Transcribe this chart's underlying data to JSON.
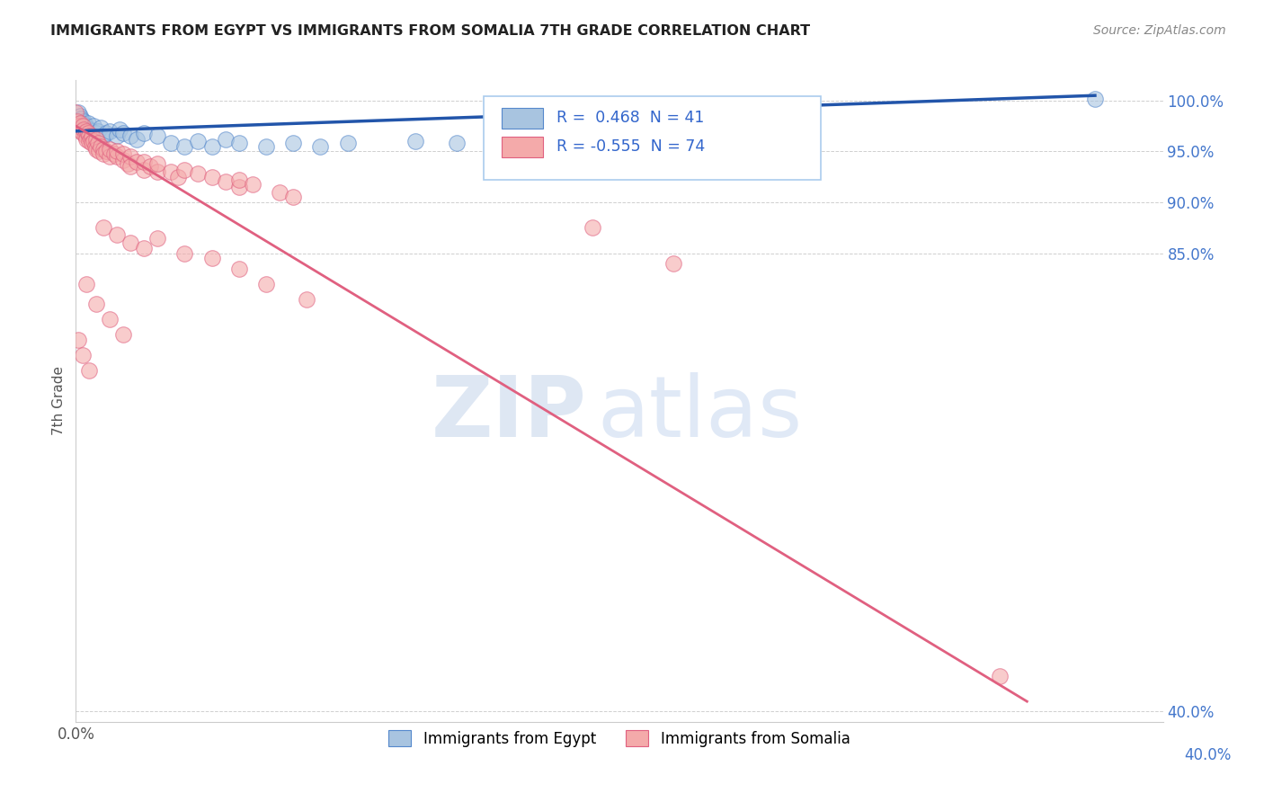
{
  "title": "IMMIGRANTS FROM EGYPT VS IMMIGRANTS FROM SOMALIA 7TH GRADE CORRELATION CHART",
  "source": "Source: ZipAtlas.com",
  "ylabel": "7th Grade",
  "r_egypt": 0.468,
  "n_egypt": 41,
  "r_somalia": -0.555,
  "n_somalia": 74,
  "egypt_color": "#A8C4E0",
  "somalia_color": "#F4AAAA",
  "egypt_edge_color": "#5588CC",
  "somalia_edge_color": "#E06080",
  "egypt_line_color": "#2255AA",
  "somalia_line_color": "#E06080",
  "watermark_zip": "ZIP",
  "watermark_atlas": "atlas",
  "background_color": "#FFFFFF",
  "grid_color": "#BBBBBB",
  "xlim": [
    0.0,
    0.8
  ],
  "ylim": [
    39.0,
    102.0
  ],
  "yticks": [
    40.0,
    85.0,
    90.0,
    95.0,
    100.0
  ],
  "egypt_scatter": [
    [
      0.0,
      97.5
    ],
    [
      0.002,
      98.8
    ],
    [
      0.003,
      98.5
    ],
    [
      0.004,
      98.2
    ],
    [
      0.005,
      97.8
    ],
    [
      0.006,
      98.0
    ],
    [
      0.007,
      97.6
    ],
    [
      0.008,
      97.4
    ],
    [
      0.009,
      97.8
    ],
    [
      0.01,
      97.2
    ],
    [
      0.012,
      97.0
    ],
    [
      0.013,
      97.5
    ],
    [
      0.015,
      96.8
    ],
    [
      0.016,
      97.0
    ],
    [
      0.018,
      97.3
    ],
    [
      0.02,
      96.5
    ],
    [
      0.022,
      96.8
    ],
    [
      0.025,
      97.0
    ],
    [
      0.03,
      96.5
    ],
    [
      0.032,
      97.2
    ],
    [
      0.035,
      96.8
    ],
    [
      0.04,
      96.5
    ],
    [
      0.045,
      96.2
    ],
    [
      0.05,
      96.8
    ],
    [
      0.06,
      96.5
    ],
    [
      0.07,
      95.8
    ],
    [
      0.08,
      95.5
    ],
    [
      0.09,
      96.0
    ],
    [
      0.1,
      95.5
    ],
    [
      0.11,
      96.2
    ],
    [
      0.12,
      95.8
    ],
    [
      0.14,
      95.5
    ],
    [
      0.16,
      95.8
    ],
    [
      0.18,
      95.5
    ],
    [
      0.2,
      95.8
    ],
    [
      0.25,
      96.0
    ],
    [
      0.28,
      95.8
    ],
    [
      0.33,
      95.5
    ],
    [
      0.37,
      95.8
    ],
    [
      0.42,
      96.0
    ],
    [
      0.75,
      100.2
    ]
  ],
  "somalia_scatter": [
    [
      0.0,
      98.8
    ],
    [
      0.001,
      98.0
    ],
    [
      0.002,
      97.5
    ],
    [
      0.003,
      97.8
    ],
    [
      0.004,
      97.0
    ],
    [
      0.005,
      97.5
    ],
    [
      0.005,
      96.8
    ],
    [
      0.006,
      97.2
    ],
    [
      0.007,
      96.5
    ],
    [
      0.008,
      97.0
    ],
    [
      0.008,
      96.2
    ],
    [
      0.009,
      96.8
    ],
    [
      0.01,
      96.5
    ],
    [
      0.01,
      96.0
    ],
    [
      0.011,
      96.2
    ],
    [
      0.012,
      96.5
    ],
    [
      0.012,
      95.8
    ],
    [
      0.013,
      96.0
    ],
    [
      0.014,
      95.5
    ],
    [
      0.015,
      96.2
    ],
    [
      0.015,
      95.2
    ],
    [
      0.016,
      95.8
    ],
    [
      0.017,
      95.0
    ],
    [
      0.018,
      95.5
    ],
    [
      0.02,
      95.2
    ],
    [
      0.02,
      94.8
    ],
    [
      0.022,
      95.0
    ],
    [
      0.025,
      94.5
    ],
    [
      0.025,
      95.2
    ],
    [
      0.028,
      94.8
    ],
    [
      0.03,
      94.5
    ],
    [
      0.03,
      95.0
    ],
    [
      0.035,
      94.2
    ],
    [
      0.035,
      94.8
    ],
    [
      0.038,
      93.8
    ],
    [
      0.04,
      94.5
    ],
    [
      0.04,
      93.5
    ],
    [
      0.045,
      94.0
    ],
    [
      0.05,
      93.2
    ],
    [
      0.05,
      94.0
    ],
    [
      0.055,
      93.5
    ],
    [
      0.06,
      93.0
    ],
    [
      0.06,
      93.8
    ],
    [
      0.07,
      93.0
    ],
    [
      0.075,
      92.5
    ],
    [
      0.08,
      93.2
    ],
    [
      0.09,
      92.8
    ],
    [
      0.1,
      92.5
    ],
    [
      0.11,
      92.0
    ],
    [
      0.12,
      91.5
    ],
    [
      0.12,
      92.2
    ],
    [
      0.13,
      91.8
    ],
    [
      0.15,
      91.0
    ],
    [
      0.16,
      90.5
    ],
    [
      0.02,
      87.5
    ],
    [
      0.03,
      86.8
    ],
    [
      0.04,
      86.0
    ],
    [
      0.05,
      85.5
    ],
    [
      0.06,
      86.5
    ],
    [
      0.08,
      85.0
    ],
    [
      0.1,
      84.5
    ],
    [
      0.12,
      83.5
    ],
    [
      0.14,
      82.0
    ],
    [
      0.17,
      80.5
    ],
    [
      0.008,
      82.0
    ],
    [
      0.015,
      80.0
    ],
    [
      0.025,
      78.5
    ],
    [
      0.035,
      77.0
    ],
    [
      0.002,
      76.5
    ],
    [
      0.005,
      75.0
    ],
    [
      0.01,
      73.5
    ],
    [
      0.38,
      87.5
    ],
    [
      0.44,
      84.0
    ],
    [
      0.68,
      43.5
    ]
  ]
}
